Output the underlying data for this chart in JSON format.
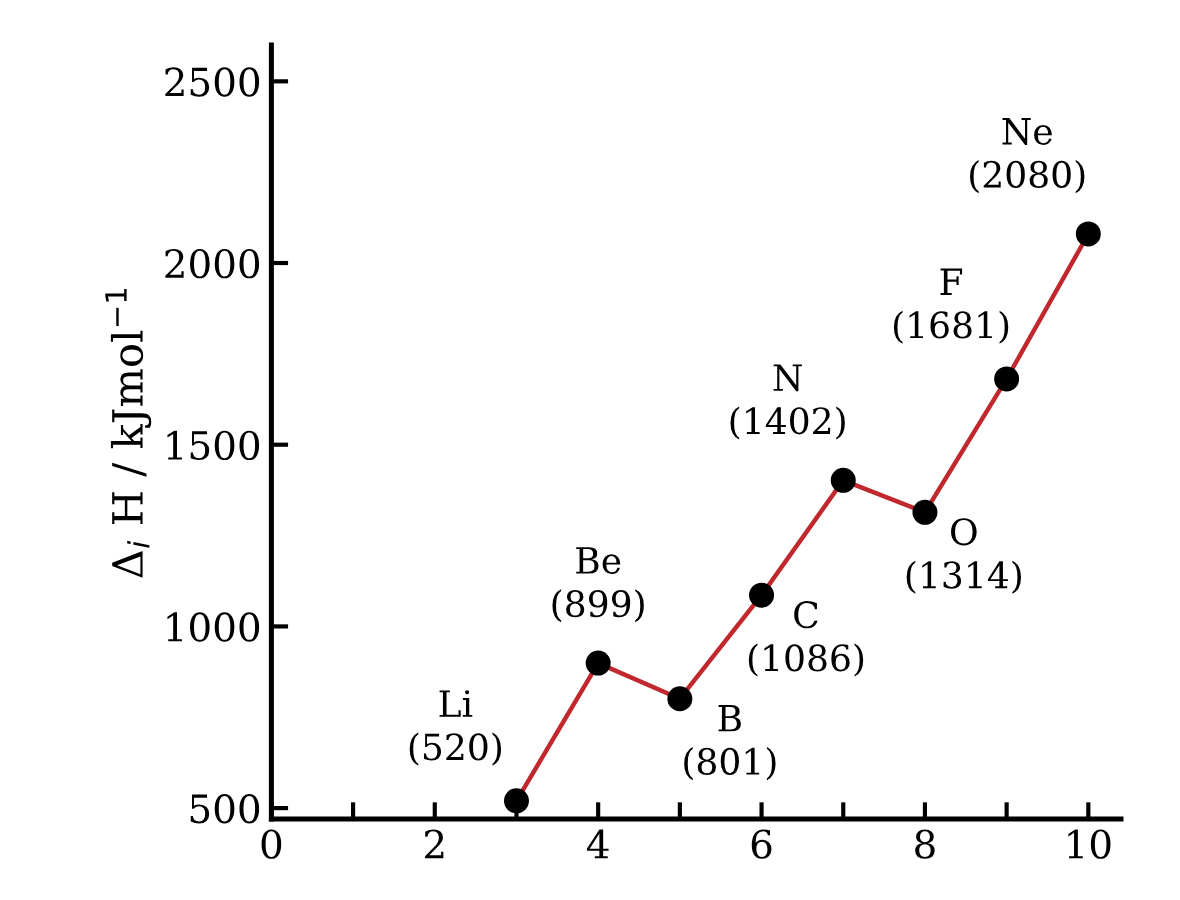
{
  "chart_data": {
    "type": "line",
    "x": [
      3,
      4,
      5,
      6,
      7,
      8,
      9,
      10
    ],
    "series": [
      {
        "color": "#c0282d",
        "values": [
          520,
          899,
          801,
          1086,
          1402,
          1314,
          1681,
          2080
        ]
      }
    ],
    "ylabel": "Δ$_{i}$ H / kJmol$^{−1}$",
    "xlim": [
      0,
      10.4
    ],
    "ylim": [
      470,
      2600
    ],
    "xticks": [
      0,
      {
        "value": 1,
        "label": null
      },
      2,
      {
        "value": 3,
        "label": null
      },
      4,
      {
        "value": 5,
        "label": null
      },
      6,
      {
        "value": 7,
        "label": null
      },
      8,
      {
        "value": 9,
        "label": null
      },
      10
    ],
    "yticks": [
      500,
      1000,
      1500,
      2000,
      2500
    ],
    "marker": "circle",
    "line_style": "solid",
    "grid": false,
    "annotations": [
      {
        "text": "Li\n(520)",
        "x": 3,
        "y": 520
      },
      {
        "text": "Be\n(899)",
        "x": 4,
        "y": 899
      },
      {
        "text": "B\n(801)",
        "x": 5,
        "y": 801
      },
      {
        "text": "C\n(1086)",
        "x": 6,
        "y": 1086
      },
      {
        "text": "N\n(1402)",
        "x": 7,
        "y": 1402
      },
      {
        "text": "O\n(1314)",
        "x": 8,
        "y": 1314
      },
      {
        "text": "F\n(1681)",
        "x": 9,
        "y": 1681
      },
      {
        "text": "Ne\n(2080)",
        "x": 10,
        "y": 2080
      }
    ]
  }
}
